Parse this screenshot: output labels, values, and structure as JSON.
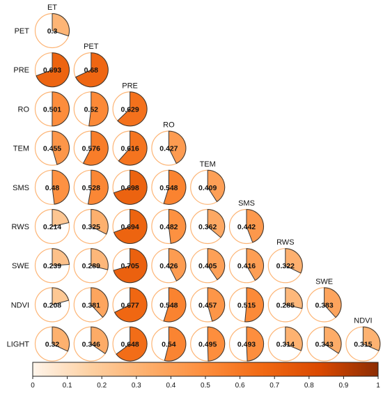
{
  "chart_data": {
    "type": "heatmap",
    "subtype": "correlation-pie-matrix",
    "columns": [
      "ET",
      "PET",
      "PRE",
      "RO",
      "TEM",
      "SMS",
      "RWS",
      "SWE",
      "NDVI"
    ],
    "rows": [
      "PET",
      "PRE",
      "RO",
      "TEM",
      "SMS",
      "RWS",
      "SWE",
      "NDVI",
      "LIGHT"
    ],
    "values": [
      [
        0.3
      ],
      [
        0.693,
        0.68
      ],
      [
        0.501,
        0.52,
        0.629
      ],
      [
        0.455,
        0.576,
        0.616,
        0.427
      ],
      [
        0.48,
        0.528,
        0.698,
        0.548,
        0.409
      ],
      [
        0.214,
        0.325,
        0.694,
        0.482,
        0.362,
        0.442
      ],
      [
        0.239,
        0.289,
        0.705,
        0.426,
        0.405,
        0.416,
        0.322
      ],
      [
        0.208,
        0.381,
        0.677,
        0.548,
        0.457,
        0.515,
        0.285,
        0.383
      ],
      [
        0.32,
        0.346,
        0.648,
        0.54,
        0.495,
        0.493,
        0.314,
        0.343,
        0.315
      ]
    ],
    "value_labels": [
      [
        "0.3"
      ],
      [
        "0.693",
        "0.68"
      ],
      [
        "0.501",
        "0.52",
        "0.629"
      ],
      [
        "0.455",
        "0.576",
        "0.616",
        "0.427"
      ],
      [
        "0.48",
        "0.528",
        "0.698",
        "0.548",
        "0.409"
      ],
      [
        "0.214",
        "0.325",
        "0.694",
        "0.482",
        "0.362",
        "0.442"
      ],
      [
        "0.239",
        "0.289",
        "0.705",
        "0.426",
        "0.405",
        "0.416",
        "0.322"
      ],
      [
        "0.208",
        "0.381",
        "0.677",
        "0.548",
        "0.457",
        "0.515",
        "0.285",
        "0.383"
      ],
      [
        "0.32",
        "0.346",
        "0.648",
        "0.54",
        "0.495",
        "0.493",
        "0.314",
        "0.343",
        "0.315"
      ]
    ],
    "colorbar": {
      "range": [
        0,
        1
      ],
      "tick_labels": [
        "0",
        "0.1",
        "0.2",
        "0.3",
        "0.4",
        "0.5",
        "0.6",
        "0.7",
        "0.8",
        "0.9",
        "1"
      ],
      "colors": [
        "#fff5eb",
        "#fdd0a2",
        "#fdae6b",
        "#fd8d3c",
        "#f16913",
        "#d94801",
        "#8c2d04"
      ],
      "placement": "bottom"
    }
  }
}
